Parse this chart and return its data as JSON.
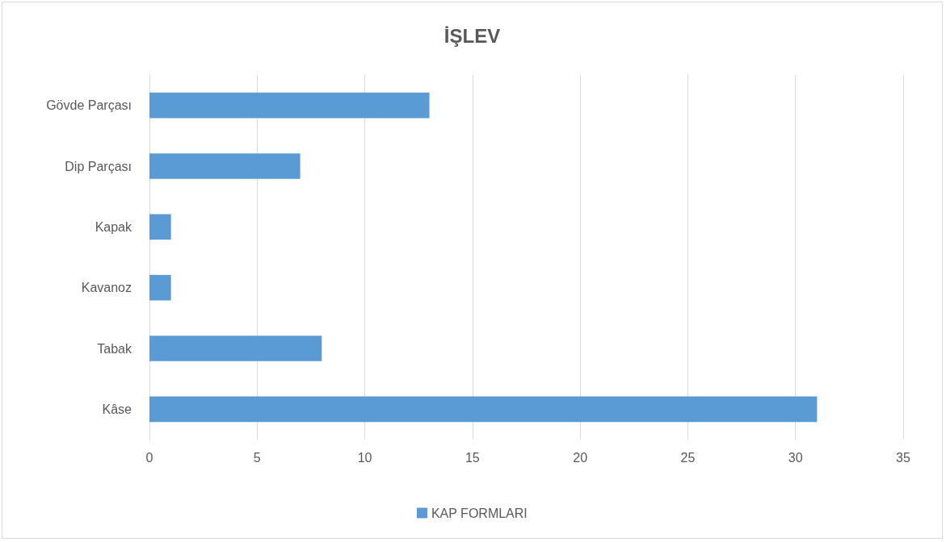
{
  "chart_data": {
    "type": "bar",
    "orientation": "horizontal",
    "title": "İŞLEV",
    "categories": [
      "Gövde Parçası",
      "Dip Parçası",
      "Kapak",
      "Kavanoz",
      "Tabak",
      "Kâse"
    ],
    "series": [
      {
        "name": "KAP FORMLARI",
        "color": "#5b9bd5",
        "values": [
          13,
          7,
          1,
          1,
          8,
          31
        ]
      }
    ],
    "xlim": [
      0,
      35
    ],
    "xticks": [
      0,
      5,
      10,
      15,
      20,
      25,
      30,
      35
    ],
    "grid": "x",
    "legend": "bottom"
  }
}
